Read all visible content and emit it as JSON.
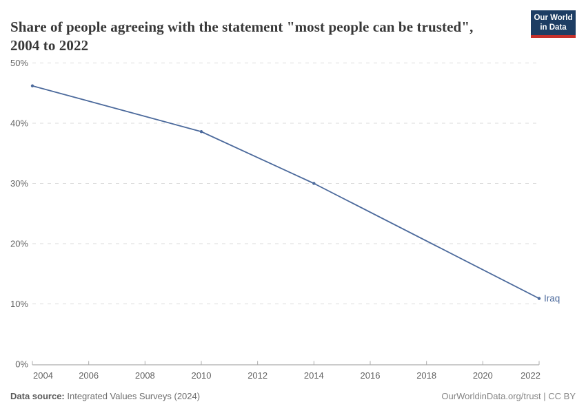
{
  "header": {
    "title": "Share of people agreeing with the statement \"most people can be trusted\", 2004 to 2022",
    "logo": {
      "line1": "Our World",
      "line2": "in Data"
    }
  },
  "chart_data": {
    "type": "line",
    "title": "Share of people agreeing with the statement \"most people can be trusted\", 2004 to 2022",
    "xlabel": "",
    "ylabel": "",
    "xlim": [
      2004,
      2022
    ],
    "ylim": [
      0,
      50
    ],
    "xticks": [
      2004,
      2006,
      2008,
      2010,
      2012,
      2014,
      2016,
      2018,
      2020,
      2022
    ],
    "yticks": [
      0,
      10,
      20,
      30,
      40,
      50
    ],
    "ytick_suffix": "%",
    "grid": "horizontal-dashed",
    "legend": "end-of-line-label",
    "series": [
      {
        "name": "Iraq",
        "color": "#4C6A9C",
        "points": [
          {
            "x": 2004,
            "y": 46.2
          },
          {
            "x": 2010,
            "y": 38.6
          },
          {
            "x": 2014,
            "y": 30.0
          },
          {
            "x": 2022,
            "y": 10.9
          }
        ]
      }
    ]
  },
  "footer": {
    "datasource_label": "Data source:",
    "datasource_value": "Integrated Values Surveys (2024)",
    "attribution": "OurWorldinData.org/trust | CC BY"
  },
  "colors": {
    "line": "#4C6A9C",
    "grid": "#DBDBDB",
    "axis": "#ACACAC",
    "tick_text": "#636363",
    "title_text": "#383838",
    "logo_bg": "#1D3D63",
    "logo_red": "#C5302B"
  }
}
